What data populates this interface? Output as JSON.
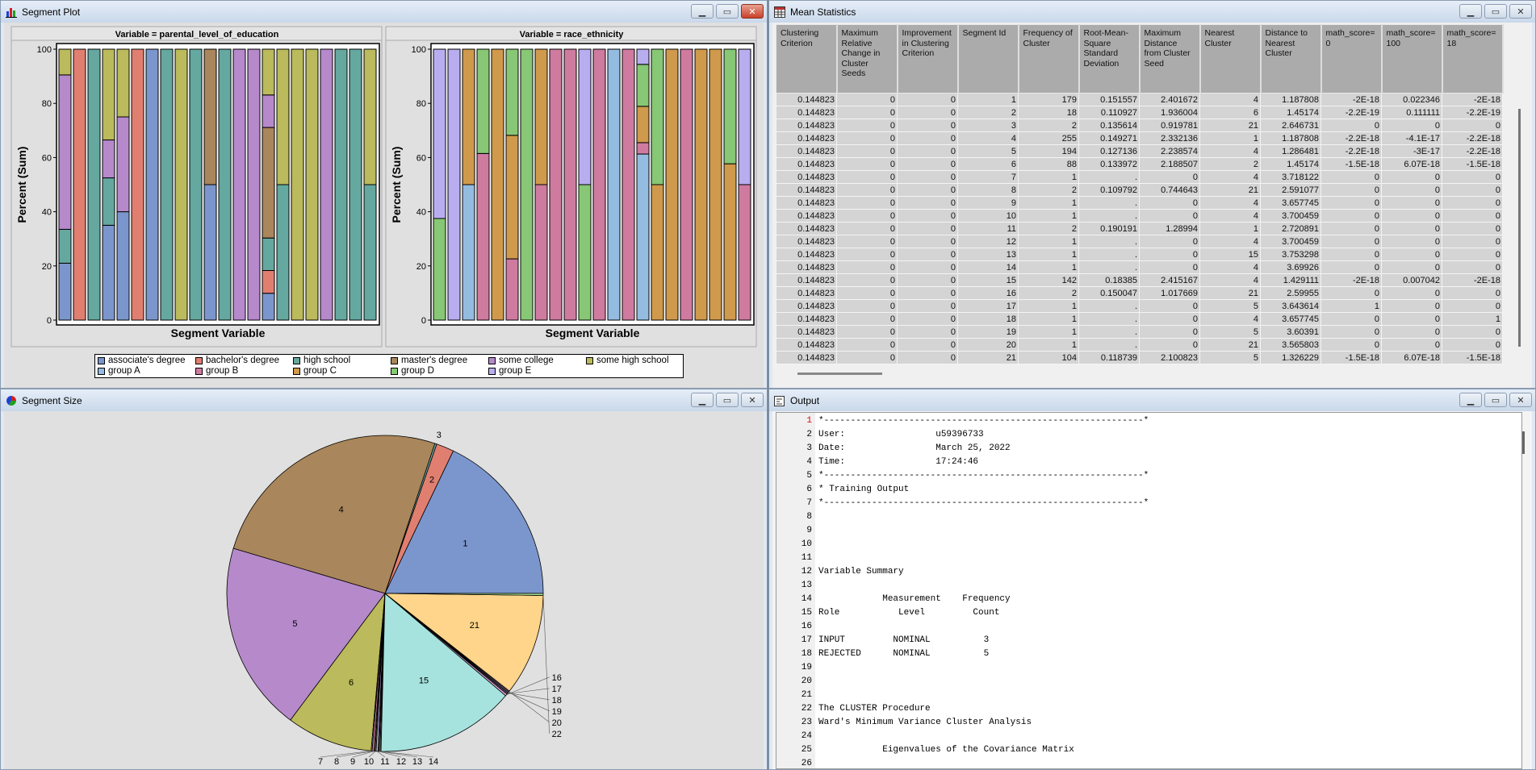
{
  "windows": {
    "segment_plot": {
      "title": "Segment Plot"
    },
    "mean_statistics": {
      "title": "Mean Statistics"
    },
    "segment_size": {
      "title": "Segment Size"
    },
    "output": {
      "title": "Output"
    }
  },
  "chart_data": [
    {
      "type": "bar",
      "stacked": true,
      "title": "Variable = parental_level_of_education",
      "xlabel": "Segment Variable",
      "ylabel": "Percent (Sum)",
      "ylim": [
        0,
        100
      ],
      "yticks": [
        "0",
        "20",
        "40",
        "60",
        "80",
        "100"
      ],
      "categories": [
        "associate's degree",
        "bachelor's degree",
        "high school",
        "master's degree",
        "some college",
        "some high school"
      ],
      "colors": [
        "#7b96cc",
        "#e07f70",
        "#65a89f",
        "#a9865b",
        "#b689cb",
        "#bbba5c"
      ],
      "segments": [
        [
          21,
          0,
          12.5,
          0,
          57,
          9.5
        ],
        [
          0,
          100,
          0,
          0,
          0,
          0
        ],
        [
          0,
          0,
          100,
          0,
          0,
          0
        ],
        [
          35,
          0,
          17.5,
          0,
          14,
          33.5
        ],
        [
          40,
          0,
          0,
          0,
          35,
          25
        ],
        [
          0,
          100,
          0,
          0,
          0,
          0
        ],
        [
          100,
          0,
          0,
          0,
          0,
          0
        ],
        [
          0,
          0,
          100,
          0,
          0,
          0
        ],
        [
          0,
          0,
          0,
          0,
          0,
          100
        ],
        [
          0,
          0,
          100,
          0,
          0,
          0
        ],
        [
          50,
          0,
          0,
          50,
          0,
          0
        ],
        [
          0,
          0,
          100,
          0,
          0,
          0
        ],
        [
          0,
          0,
          0,
          0,
          100,
          0
        ],
        [
          0,
          0,
          0,
          0,
          100,
          0
        ],
        [
          9.9,
          8.4,
          12,
          40.8,
          12,
          16.9
        ],
        [
          0,
          0,
          50,
          0,
          0,
          50
        ],
        [
          0,
          0,
          0,
          0,
          0,
          100
        ],
        [
          0,
          0,
          0,
          0,
          0,
          100
        ],
        [
          0,
          0,
          0,
          0,
          100,
          0
        ],
        [
          0,
          0,
          100,
          0,
          0,
          0
        ],
        [
          0,
          0,
          100,
          0,
          0,
          0
        ],
        [
          0,
          0,
          50,
          0,
          0,
          50
        ]
      ]
    },
    {
      "type": "bar",
      "stacked": true,
      "title": "Variable = race_ethnicity",
      "xlabel": "Segment Variable",
      "ylabel": "Percent (Sum)",
      "ylim": [
        0,
        100
      ],
      "yticks": [
        "0",
        "20",
        "40",
        "60",
        "80",
        "100"
      ],
      "categories": [
        "group A",
        "group B",
        "group C",
        "group D",
        "group E"
      ],
      "colors": [
        "#94bce0",
        "#cf7ba0",
        "#d09a4c",
        "#88c775",
        "#b8aeef"
      ],
      "segments": [
        [
          0,
          0,
          0,
          37.5,
          62.5
        ],
        [
          0,
          0,
          0,
          0,
          100
        ],
        [
          50,
          0,
          50,
          0,
          0
        ],
        [
          0,
          61.5,
          0,
          38.5,
          0
        ],
        [
          0,
          0,
          100,
          0,
          0
        ],
        [
          0,
          22.6,
          45.6,
          31.8,
          0
        ],
        [
          0,
          0,
          0,
          100,
          0
        ],
        [
          0,
          50,
          50,
          0,
          0
        ],
        [
          0,
          100,
          0,
          0,
          0
        ],
        [
          0,
          100,
          0,
          0,
          0
        ],
        [
          0,
          0,
          0,
          50,
          50
        ],
        [
          0,
          100,
          0,
          0,
          0
        ],
        [
          100,
          0,
          0,
          0,
          0
        ],
        [
          0,
          100,
          0,
          0,
          0
        ],
        [
          61.3,
          4.2,
          13.4,
          15.5,
          5.6
        ],
        [
          0,
          0,
          50,
          50,
          0
        ],
        [
          0,
          0,
          100,
          0,
          0
        ],
        [
          0,
          100,
          0,
          0,
          0
        ],
        [
          0,
          0,
          100,
          0,
          0
        ],
        [
          0,
          0,
          100,
          0,
          0
        ],
        [
          0,
          0,
          57.7,
          42.3,
          0
        ],
        [
          0,
          50,
          0,
          0,
          50
        ]
      ]
    },
    {
      "type": "pie",
      "labels": [
        "1",
        "2",
        "3",
        "4",
        "5",
        "6",
        "7",
        "8",
        "9",
        "10",
        "11",
        "12",
        "13",
        "14",
        "15",
        "16",
        "17",
        "18",
        "19",
        "20",
        "21",
        "22"
      ],
      "values": [
        179,
        18,
        2,
        255,
        194,
        88,
        1,
        2,
        1,
        1,
        2,
        1,
        1,
        1,
        142,
        2,
        1,
        1,
        1,
        1,
        104,
        2
      ],
      "colors": [
        "#7b96cc",
        "#e07f70",
        "#65a89f",
        "#a9865b",
        "#b689cb",
        "#bbba5c",
        "#94bce0",
        "#cf7ba0",
        "#d09a4c",
        "#88c775",
        "#b8aeef",
        "#c9a78b",
        "#e6a0c0",
        "#9fcf9f",
        "#a6e3de",
        "#e8b0e8",
        "#d8a8f0",
        "#f0c0d0",
        "#c0b0f0",
        "#e0a8e0",
        "#fed58a",
        "#a8e08f"
      ]
    }
  ],
  "legend": {
    "items": [
      {
        "label": "associate's degree",
        "color": "#7b96cc"
      },
      {
        "label": "bachelor's degree",
        "color": "#e07f70"
      },
      {
        "label": "high school",
        "color": "#65a89f"
      },
      {
        "label": "master's degree",
        "color": "#a9865b"
      },
      {
        "label": "some college",
        "color": "#b689cb"
      },
      {
        "label": "some high school",
        "color": "#bbba5c"
      },
      {
        "label": "group A",
        "color": "#94bce0"
      },
      {
        "label": "group B",
        "color": "#cf7ba0"
      },
      {
        "label": "group C",
        "color": "#d09a4c"
      },
      {
        "label": "group D",
        "color": "#88c775"
      },
      {
        "label": "group E",
        "color": "#b8aeef"
      }
    ]
  },
  "mean_table": {
    "columns": [
      "Clustering Criterion",
      "Maximum Relative Change in Cluster Seeds",
      "Improvement in Clustering Criterion",
      "Segment Id",
      "Frequency of Cluster",
      "Root-Mean-Square Standard Deviation",
      "Maximum Distance from Cluster Seed",
      "Nearest Cluster",
      "Distance to Nearest Cluster",
      "math_score= 0",
      "math_score= 100",
      "math_score= 18"
    ],
    "rows": [
      [
        "0.144823",
        "0",
        "0",
        "1",
        "179",
        "0.151557",
        "2.401672",
        "4",
        "1.187808",
        "-2E-18",
        "0.022346",
        "-2E-18"
      ],
      [
        "0.144823",
        "0",
        "0",
        "2",
        "18",
        "0.110927",
        "1.936004",
        "6",
        "1.45174",
        "-2.2E-19",
        "0.111111",
        "-2.2E-19"
      ],
      [
        "0.144823",
        "0",
        "0",
        "3",
        "2",
        "0.135614",
        "0.919781",
        "21",
        "2.646731",
        "0",
        "0",
        "0"
      ],
      [
        "0.144823",
        "0",
        "0",
        "4",
        "255",
        "0.149271",
        "2.332136",
        "1",
        "1.187808",
        "-2.2E-18",
        "-4.1E-17",
        "-2.2E-18"
      ],
      [
        "0.144823",
        "0",
        "0",
        "5",
        "194",
        "0.127136",
        "2.238574",
        "4",
        "1.286481",
        "-2.2E-18",
        "-3E-17",
        "-2.2E-18"
      ],
      [
        "0.144823",
        "0",
        "0",
        "6",
        "88",
        "0.133972",
        "2.188507",
        "2",
        "1.45174",
        "-1.5E-18",
        "6.07E-18",
        "-1.5E-18"
      ],
      [
        "0.144823",
        "0",
        "0",
        "7",
        "1",
        ".",
        "0",
        "4",
        "3.718122",
        "0",
        "0",
        "0"
      ],
      [
        "0.144823",
        "0",
        "0",
        "8",
        "2",
        "0.109792",
        "0.744643",
        "21",
        "2.591077",
        "0",
        "0",
        "0"
      ],
      [
        "0.144823",
        "0",
        "0",
        "9",
        "1",
        ".",
        "0",
        "4",
        "3.657745",
        "0",
        "0",
        "0"
      ],
      [
        "0.144823",
        "0",
        "0",
        "10",
        "1",
        ".",
        "0",
        "4",
        "3.700459",
        "0",
        "0",
        "0"
      ],
      [
        "0.144823",
        "0",
        "0",
        "11",
        "2",
        "0.190191",
        "1.28994",
        "1",
        "2.720891",
        "0",
        "0",
        "0"
      ],
      [
        "0.144823",
        "0",
        "0",
        "12",
        "1",
        ".",
        "0",
        "4",
        "3.700459",
        "0",
        "0",
        "0"
      ],
      [
        "0.144823",
        "0",
        "0",
        "13",
        "1",
        ".",
        "0",
        "15",
        "3.753298",
        "0",
        "0",
        "0"
      ],
      [
        "0.144823",
        "0",
        "0",
        "14",
        "1",
        ".",
        "0",
        "4",
        "3.69926",
        "0",
        "0",
        "0"
      ],
      [
        "0.144823",
        "0",
        "0",
        "15",
        "142",
        "0.18385",
        "2.415167",
        "4",
        "1.429111",
        "-2E-18",
        "0.007042",
        "-2E-18"
      ],
      [
        "0.144823",
        "0",
        "0",
        "16",
        "2",
        "0.150047",
        "1.017669",
        "21",
        "2.59955",
        "0",
        "0",
        "0"
      ],
      [
        "0.144823",
        "0",
        "0",
        "17",
        "1",
        ".",
        "0",
        "5",
        "3.643614",
        "1",
        "0",
        "0"
      ],
      [
        "0.144823",
        "0",
        "0",
        "18",
        "1",
        ".",
        "0",
        "4",
        "3.657745",
        "0",
        "0",
        "1"
      ],
      [
        "0.144823",
        "0",
        "0",
        "19",
        "1",
        ".",
        "0",
        "5",
        "3.60391",
        "0",
        "0",
        "0"
      ],
      [
        "0.144823",
        "0",
        "0",
        "20",
        "1",
        ".",
        "0",
        "21",
        "3.565803",
        "0",
        "0",
        "0"
      ],
      [
        "0.144823",
        "0",
        "0",
        "21",
        "104",
        "0.118739",
        "2.100823",
        "5",
        "1.326229",
        "-1.5E-18",
        "6.07E-18",
        "-1.5E-18"
      ]
    ]
  },
  "output": {
    "current_line": "1",
    "lines": [
      "*------------------------------------------------------------*",
      "User:                 u59396733",
      "Date:                 March 25, 2022",
      "Time:                 17:24:46",
      "*------------------------------------------------------------*",
      "* Training Output",
      "*------------------------------------------------------------*",
      "",
      "",
      "",
      "",
      "Variable Summary",
      "",
      "            Measurement    Frequency",
      "Role           Level         Count",
      "",
      "INPUT         NOMINAL          3",
      "REJECTED      NOMINAL          5",
      "",
      "",
      "",
      "The CLUSTER Procedure",
      "Ward's Minimum Variance Cluster Analysis",
      "",
      "            Eigenvalues of the Covariance Matrix",
      ""
    ]
  }
}
